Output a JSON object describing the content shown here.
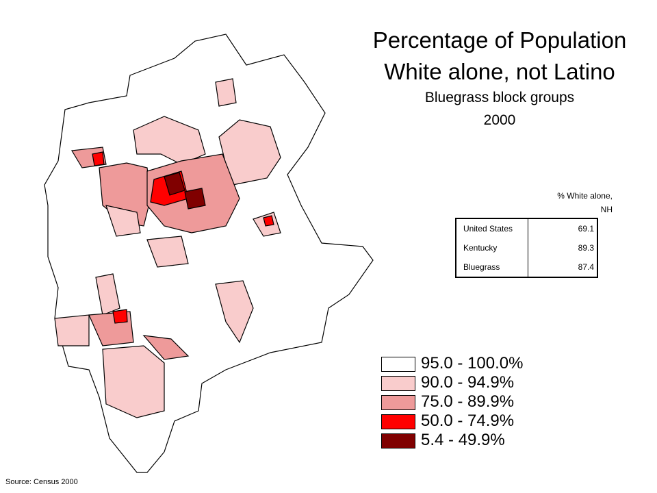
{
  "title": [
    "Percentage of Population",
    "White alone, not Latino"
  ],
  "subtitle": [
    "Bluegrass block groups",
    "2000"
  ],
  "table": {
    "header": "% White alone, NH",
    "rows": [
      [
        "United States",
        "69.1"
      ],
      [
        "Kentucky",
        "89.3"
      ],
      [
        "Bluegrass",
        "87.4"
      ]
    ]
  },
  "legend": [
    {
      "label": "95.0 - 100.0%",
      "color": "#ffffff"
    },
    {
      "label": "90.0 - 94.9%",
      "color": "#f9cccc"
    },
    {
      "label": "75.0 - 89.9%",
      "color": "#ee9a9a"
    },
    {
      "label": "50.0 - 74.9%",
      "color": "#ff0000"
    },
    {
      "label": "5.4 - 49.9%",
      "color": "#800000"
    }
  ],
  "source": "Source: Census 2000"
}
